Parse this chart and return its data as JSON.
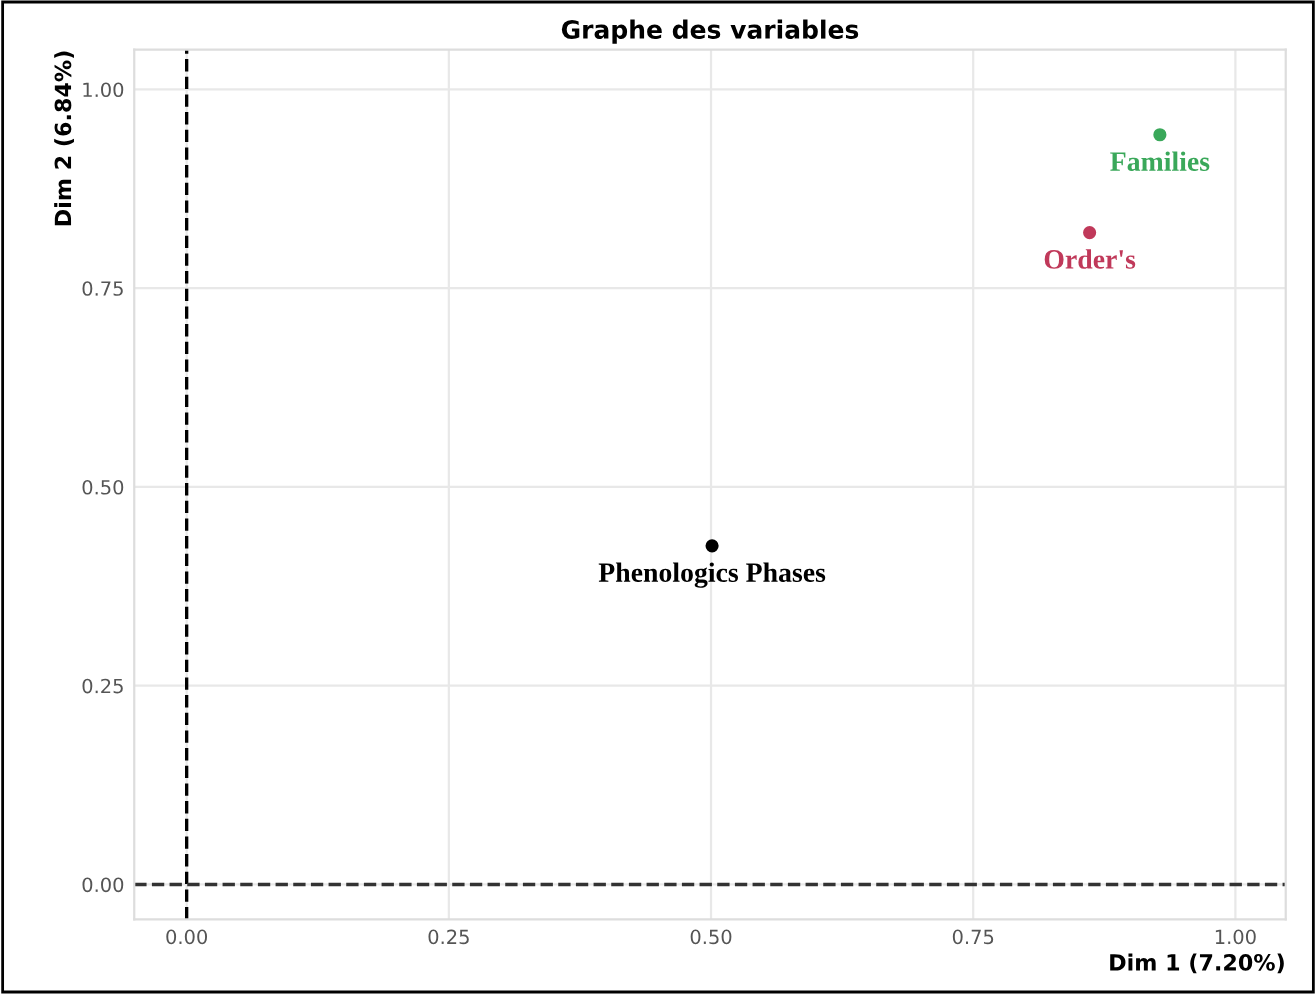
{
  "chart_data": {
    "type": "scatter",
    "title": "Graphe des variables",
    "xlabel": "Dim 1 (7.20%)",
    "ylabel": "Dim 2 (6.84%)",
    "series": [
      {
        "name": "Phenologics Phases",
        "color": "#000000",
        "x": [
          0.501
        ],
        "values": [
          0.426
        ]
      },
      {
        "name": "Order's",
        "color": "#c0395a",
        "x": [
          0.861
        ],
        "values": [
          0.82
        ]
      },
      {
        "name": "Families",
        "color": "#3aa85a",
        "x": [
          0.928
        ],
        "values": [
          0.943
        ]
      }
    ],
    "xlim": [
      -0.05,
      1.048
    ],
    "ylim": [
      -0.044,
      1.05
    ],
    "xticks": [
      {
        "value": 0,
        "label": "0.00"
      },
      0.25,
      {
        "value": 0.5,
        "label": "0.50"
      },
      0.75,
      {
        "value": 1,
        "label": "1.00"
      }
    ],
    "yticks": [
      {
        "value": 0,
        "label": "0.00"
      },
      0.25,
      {
        "value": 0.5,
        "label": "0.50"
      },
      0.75,
      {
        "value": 1,
        "label": "1.00"
      }
    ],
    "ref_lines": [
      {
        "axis": "x",
        "value": 0,
        "line_style": "dashed",
        "color": "#000000"
      },
      {
        "axis": "y",
        "value": 0,
        "line_style": "dashed",
        "color": "#333333"
      }
    ],
    "grid": true,
    "marker": "circle",
    "legend": false
  }
}
